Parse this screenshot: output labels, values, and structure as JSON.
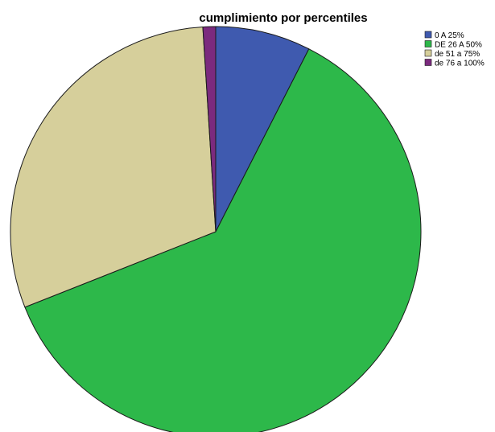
{
  "chart_data": {
    "type": "pie",
    "title": "cumplimiento por percentiles",
    "categories": [
      "0 A 25%",
      "DE 26 A 50%",
      "de 51 a 75%",
      "de 76 a 100%"
    ],
    "values": [
      7.5,
      61.5,
      30,
      1
    ],
    "colors": [
      "#3f5aaf",
      "#2db84a",
      "#d6cf9b",
      "#7b2a7e"
    ],
    "start_angle_deg": 0,
    "direction": "clockwise",
    "legend": "top-right"
  }
}
